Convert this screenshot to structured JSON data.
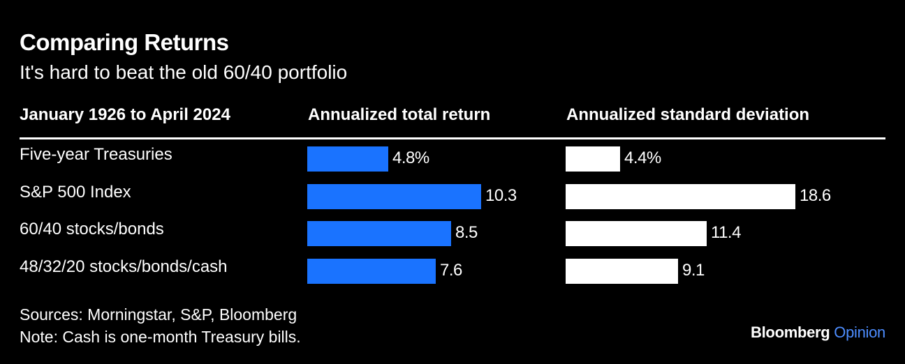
{
  "title": "Comparing Returns",
  "subtitle": "It's hard to beat the old 60/40 portfolio",
  "headers": {
    "period": "January 1926 to April 2024",
    "return": "Annualized total return",
    "stdev": "Annualized standard deviation"
  },
  "colors": {
    "background": "#000000",
    "return_bar": "#1a73ff",
    "stdev_bar": "#ffffff",
    "text": "#ffffff",
    "brand_accent": "#4d8dff"
  },
  "chart_data": {
    "type": "bar",
    "orientation": "horizontal",
    "categories": [
      "Five-year Treasuries",
      "S&P 500 Index",
      "60/40 stocks/bonds",
      "48/32/20 stocks/bonds/cash"
    ],
    "series": [
      {
        "name": "Annualized total return",
        "values": [
          4.8,
          10.3,
          8.5,
          7.6
        ],
        "labels": [
          "4.8%",
          "10.3",
          "8.5",
          "7.6"
        ]
      },
      {
        "name": "Annualized standard deviation",
        "values": [
          4.4,
          18.6,
          11.4,
          9.1
        ],
        "labels": [
          "4.4%",
          "18.6",
          "11.4",
          "9.1"
        ]
      }
    ],
    "grid": false
  },
  "footer": {
    "sources": "Sources: Morningstar, S&P, Bloomberg",
    "note": "Note: Cash is one-month Treasury bills."
  },
  "brand": {
    "name": "Bloomberg",
    "section": "Opinion"
  }
}
